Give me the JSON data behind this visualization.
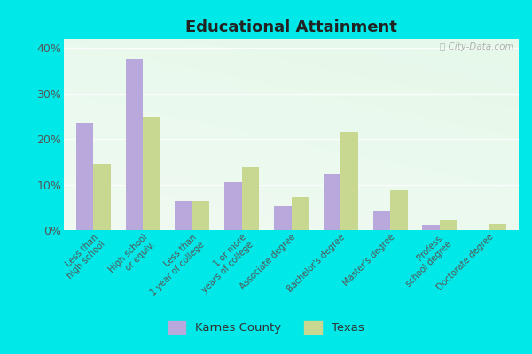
{
  "title": "Educational Attainment",
  "categories": [
    "Less than\nhigh school",
    "High school\nor equiv.",
    "Less than\n1 year of college",
    "1 or more\nyears of college",
    "Associate degree",
    "Bachelor's degree",
    "Master's degree",
    "Profess.\nschool degree",
    "Doctorate degree"
  ],
  "karnes_values": [
    23.5,
    37.5,
    6.5,
    10.5,
    5.2,
    12.2,
    4.2,
    1.2,
    0.0
  ],
  "texas_values": [
    14.5,
    24.8,
    6.5,
    13.8,
    7.2,
    21.5,
    8.7,
    2.2,
    1.3
  ],
  "karnes_color": "#b8a8dc",
  "texas_color": "#c8d890",
  "yticks": [
    0,
    10,
    20,
    30,
    40
  ],
  "ylim": [
    0,
    42
  ],
  "legend_karnes": "Karnes County",
  "legend_texas": "Texas",
  "outer_background": "#00e8e8",
  "watermark": "ⓘ City-Data.com"
}
